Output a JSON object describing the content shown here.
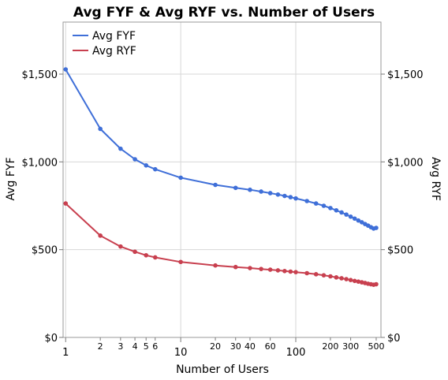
{
  "chart_data": {
    "type": "line",
    "title": "Avg FYF & Avg RYF vs. Number of Users",
    "xlabel": "Number of Users",
    "ylabel_left": "Avg FYF",
    "ylabel_right": "Avg RYF",
    "x_scale": "log",
    "xlim": [
      0.95,
      550
    ],
    "ylim": [
      0,
      1500
    ],
    "y_ticks": [
      {
        "value": 0,
        "label": "$0"
      },
      {
        "value": 500,
        "label": "$500"
      },
      {
        "value": 1000,
        "label": "$1,000"
      },
      {
        "value": 1500,
        "label": "$1,500"
      }
    ],
    "x_ticks_major": [
      {
        "value": 1,
        "label": "1"
      },
      {
        "value": 10,
        "label": "10"
      },
      {
        "value": 100,
        "label": "100"
      }
    ],
    "x_ticks_minor": [
      {
        "value": 2,
        "label": "2"
      },
      {
        "value": 3,
        "label": "3"
      },
      {
        "value": 4,
        "label": "4"
      },
      {
        "value": 5,
        "label": "5"
      },
      {
        "value": 6,
        "label": "6"
      },
      {
        "value": 20,
        "label": "20"
      },
      {
        "value": 30,
        "label": "30"
      },
      {
        "value": 40,
        "label": "40"
      },
      {
        "value": 60,
        "label": "60"
      },
      {
        "value": 200,
        "label": "200"
      },
      {
        "value": 300,
        "label": "300"
      },
      {
        "value": 500,
        "label": "500"
      }
    ],
    "grid": true,
    "legend_position": "top-left",
    "series": [
      {
        "name": "Avg FYF",
        "color": "#3F6FD8",
        "x": [
          1,
          2,
          3,
          4,
          5,
          6,
          10,
          20,
          30,
          40,
          50,
          60,
          70,
          80,
          90,
          100,
          125,
          150,
          175,
          200,
          225,
          250,
          275,
          300,
          325,
          350,
          375,
          400,
          425,
          450,
          475,
          500
        ],
        "y": [
          1527,
          1188,
          1075,
          1015,
          980,
          958,
          910,
          869,
          852,
          841,
          831,
          822,
          814,
          806,
          799,
          792,
          777,
          763,
          750,
          737,
          724,
          712,
          700,
          688,
          677,
          666,
          656,
          646,
          637,
          628,
          620,
          624
        ]
      },
      {
        "name": "Avg RYF",
        "color": "#C8404F",
        "x": [
          1,
          2,
          3,
          4,
          5,
          6,
          10,
          20,
          30,
          40,
          50,
          60,
          70,
          80,
          90,
          100,
          125,
          150,
          175,
          200,
          225,
          250,
          275,
          300,
          325,
          350,
          375,
          400,
          425,
          450,
          475,
          500
        ],
        "y": [
          763,
          580,
          518,
          488,
          468,
          456,
          430,
          410,
          401,
          395,
          390,
          386,
          382,
          378,
          375,
          372,
          366,
          360,
          354,
          348,
          342,
          337,
          332,
          327,
          322,
          318,
          314,
          310,
          306,
          303,
          300,
          303
        ]
      }
    ]
  }
}
